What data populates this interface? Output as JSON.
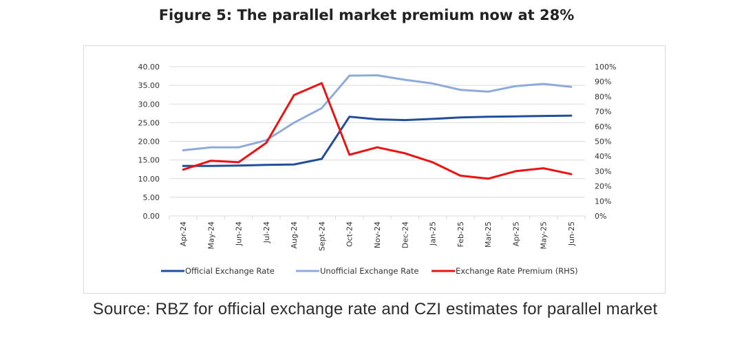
{
  "page": {
    "title": "Figure 5: The parallel market premium now at 28%",
    "source": "Source: RBZ for official exchange rate and CZI estimates for parallel market"
  },
  "chart_data": {
    "type": "line",
    "title": "Figure 5: The parallel market premium now at 28%",
    "xlabel": "",
    "ylabel": "",
    "categories": [
      "Apr-24",
      "May-24",
      "Jun-24",
      "Jul-24",
      "Aug-24",
      "Sept-24",
      "Oct-24",
      "Nov-24",
      "Dec-24",
      "Jan-25",
      "Feb-25",
      "Mar-25",
      "Apr-25",
      "May-25",
      "Jun-25"
    ],
    "ylim": [
      0,
      40
    ],
    "y_ticks": [
      "0.00",
      "5.00",
      "10.00",
      "15.00",
      "20.00",
      "25.00",
      "30.00",
      "35.00",
      "40.00"
    ],
    "y2lim": [
      0,
      100
    ],
    "y2_ticks": [
      "0%",
      "10%",
      "20%",
      "30%",
      "40%",
      "50%",
      "60%",
      "70%",
      "80%",
      "90%",
      "100%"
    ],
    "grid": true,
    "legend_position": "bottom",
    "series": [
      {
        "name": "Official Exchange Rate",
        "axis": "left",
        "color": "#1f4e9c",
        "values": [
          13.4,
          13.4,
          13.5,
          13.7,
          13.8,
          15.3,
          26.6,
          25.9,
          25.7,
          26.0,
          26.4,
          26.6,
          26.7,
          26.8,
          26.9
        ]
      },
      {
        "name": "Unofficial Exchange Rate",
        "axis": "left",
        "color": "#8eaadb",
        "values": [
          17.6,
          18.4,
          18.4,
          20.3,
          25.0,
          28.9,
          37.6,
          37.7,
          36.5,
          35.5,
          33.8,
          33.3,
          34.8,
          35.4,
          34.6
        ]
      },
      {
        "name": "Exchange Rate Premium (RHS)",
        "axis": "right",
        "color": "#ee1111",
        "values": [
          31,
          37,
          36,
          49,
          81,
          89,
          41,
          46,
          42,
          36,
          27,
          25,
          30,
          32,
          28
        ]
      }
    ]
  }
}
